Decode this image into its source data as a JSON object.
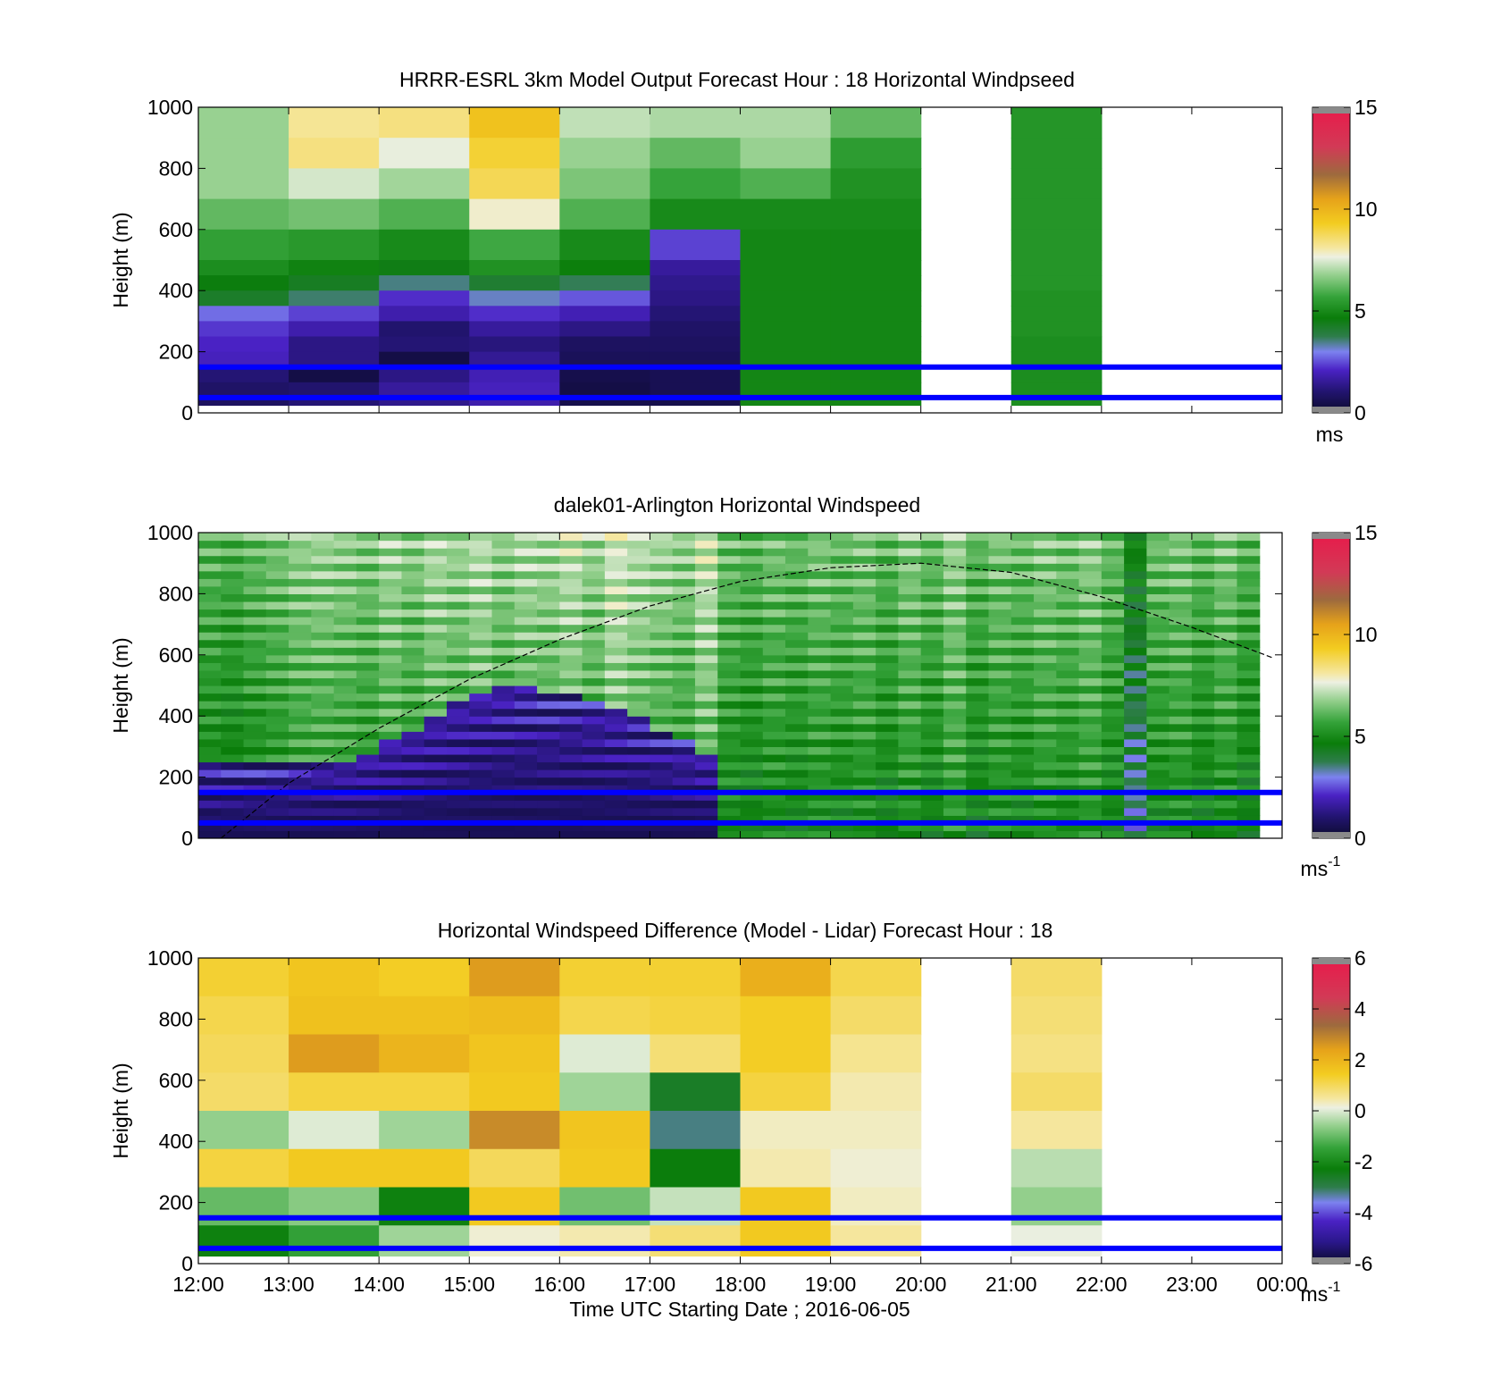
{
  "figure": {
    "xlabel": "Time UTC  Starting Date ; 2016-06-05",
    "x_ticks": [
      "12:00",
      "13:00",
      "14:00",
      "15:00",
      "16:00",
      "17:00",
      "18:00",
      "19:00",
      "20:00",
      "21:00",
      "22:00",
      "23:00",
      "00:00"
    ]
  },
  "chart_data": [
    {
      "type": "heatmap",
      "title": "HRRR-ESRL 3km Model Output   Forecast Hour : 18 Horizontal Windpseed",
      "ylabel": "Height (m)",
      "ylim": [
        0,
        1000
      ],
      "y_ticks": [
        "0",
        "200",
        "400",
        "600",
        "800",
        "1000"
      ],
      "colorbar": {
        "min": 0,
        "max": 15,
        "ticks": [
          "0",
          "5",
          "10",
          "15"
        ],
        "unit": "ms"
      },
      "reference_lines_m": [
        150,
        50
      ],
      "hours": [
        "12:00",
        "13:00",
        "14:00",
        "15:00",
        "16:00",
        "17:00",
        "18:00",
        "19:00",
        "20:00",
        "21:00",
        "22:00"
      ],
      "rows_top_m": [
        1000,
        900,
        800,
        700,
        600,
        500,
        450,
        400,
        350,
        300,
        250,
        200,
        150,
        100,
        50
      ],
      "rows_bottom_m": [
        900,
        800,
        700,
        600,
        500,
        450,
        400,
        350,
        300,
        250,
        200,
        150,
        100,
        50,
        25
      ],
      "values": [
        [
          6.8,
          6.8,
          6.8,
          6.2,
          5.6,
          5.1,
          4.6,
          4.2,
          2.8,
          2.3,
          2.1,
          2.0,
          1.1,
          0.9,
          0.8
        ],
        [
          8.2,
          8.4,
          7.4,
          6.4,
          5.4,
          4.8,
          4.3,
          3.6,
          2.4,
          1.8,
          1.3,
          1.3,
          0.4,
          1.0,
          1.1
        ],
        [
          8.4,
          7.6,
          6.9,
          6.0,
          5.0,
          4.5,
          3.5,
          2.2,
          1.8,
          1.0,
          1.1,
          0.4,
          1.3,
          1.6,
          1.4
        ],
        [
          9.6,
          9.1,
          8.8,
          7.8,
          5.8,
          5.2,
          4.1,
          3.2,
          2.2,
          1.6,
          1.2,
          1.5,
          1.9,
          2.0,
          1.8
        ],
        [
          7.2,
          6.8,
          6.5,
          6.0,
          5.0,
          4.7,
          3.7,
          2.6,
          1.9,
          1.3,
          0.8,
          0.7,
          0.5,
          0.4,
          0.5
        ],
        [
          7.0,
          6.2,
          5.7,
          5.0,
          2.4,
          1.6,
          1.4,
          1.3,
          1.1,
          0.9,
          0.8,
          0.7,
          0.6,
          0.6,
          0.5
        ],
        [
          7.0,
          6.8,
          6.0,
          5.0,
          4.9,
          4.9,
          4.9,
          4.9,
          4.9,
          4.9,
          4.9,
          4.9,
          4.9,
          4.9,
          4.9
        ],
        [
          6.2,
          5.5,
          5.2,
          5.0,
          4.9,
          4.9,
          4.9,
          4.9,
          4.9,
          4.9,
          4.9,
          4.9,
          4.9,
          4.9,
          4.9
        ],
        [
          null,
          null,
          null,
          null,
          null,
          null,
          null,
          null,
          null,
          null,
          null,
          null,
          null,
          null,
          null
        ],
        [
          5.3,
          5.3,
          5.3,
          5.3,
          5.3,
          5.3,
          5.3,
          5.2,
          5.2,
          5.2,
          5.1,
          5.1,
          5.1,
          5.1,
          5.1
        ],
        [
          null,
          null,
          null,
          null,
          null,
          null,
          null,
          null,
          null,
          null,
          null,
          null,
          null,
          null,
          null
        ]
      ]
    },
    {
      "type": "heatmap",
      "title": "dalek01-Arlington  Horizontal Windspeed",
      "ylabel": "Height (m)",
      "ylim": [
        0,
        1000
      ],
      "y_ticks": [
        "0",
        "200",
        "400",
        "600",
        "800",
        "1000"
      ],
      "colorbar": {
        "min": 0,
        "max": 15,
        "ticks": [
          "0",
          "5",
          "10",
          "15"
        ],
        "unit": "ms",
        "unit_exp": "-1"
      },
      "reference_lines_m": [
        150,
        50
      ],
      "mixing_layer_curve_m": [
        [
          12.25,
          0
        ],
        [
          13.0,
          180
        ],
        [
          14.0,
          360
        ],
        [
          15.0,
          520
        ],
        [
          16.0,
          650
        ],
        [
          17.0,
          760
        ],
        [
          18.0,
          840
        ],
        [
          19.0,
          885
        ],
        [
          20.0,
          900
        ],
        [
          21.0,
          870
        ],
        [
          22.0,
          790
        ],
        [
          23.0,
          690
        ],
        [
          23.9,
          590
        ]
      ],
      "time_extent_h": [
        12.0,
        23.85
      ],
      "profile_columns": [
        [
          12.0,
          4.6,
          12.0
        ],
        [
          12.25,
          4.4,
          12.0
        ],
        [
          12.5,
          4.7,
          12.0
        ],
        [
          12.75,
          4.9,
          12.0
        ],
        [
          13.0,
          5.2,
          12.0
        ],
        [
          13.25,
          5.3,
          13.0
        ],
        [
          13.5,
          5.2,
          13.0
        ],
        [
          13.75,
          5.0,
          14.0
        ],
        [
          14.0,
          5.4,
          16.0
        ],
        [
          14.25,
          5.1,
          18.0
        ],
        [
          14.5,
          5.5,
          20.0
        ],
        [
          14.75,
          5.3,
          22.0
        ],
        [
          15.0,
          5.6,
          24.0
        ],
        [
          15.25,
          5.2,
          25.0
        ],
        [
          15.5,
          5.5,
          25.0
        ],
        [
          15.75,
          5.4,
          24.0
        ],
        [
          16.0,
          5.7,
          24.0
        ],
        [
          16.25,
          5.3,
          23.0
        ],
        [
          16.5,
          5.9,
          21.0
        ],
        [
          16.75,
          5.6,
          20.0
        ],
        [
          17.0,
          5.4,
          18.0
        ],
        [
          17.25,
          5.2,
          16.0
        ],
        [
          17.5,
          5.8,
          14.0
        ],
        [
          17.75,
          4.8,
          0.0
        ],
        [
          18.0,
          4.6,
          0.0
        ],
        [
          18.25,
          4.9,
          0.0
        ],
        [
          18.5,
          4.7,
          0.0
        ],
        [
          18.75,
          5.0,
          0.0
        ],
        [
          19.0,
          4.8,
          0.0
        ],
        [
          19.25,
          5.0,
          0.0
        ],
        [
          19.5,
          4.6,
          0.0
        ],
        [
          19.75,
          5.1,
          0.0
        ],
        [
          20.0,
          4.7,
          0.0
        ],
        [
          20.25,
          5.3,
          0.0
        ],
        [
          20.5,
          4.6,
          0.0
        ],
        [
          20.75,
          5.0,
          0.0
        ],
        [
          21.0,
          4.8,
          0.0
        ],
        [
          21.25,
          5.1,
          0.0
        ],
        [
          21.5,
          4.9,
          0.0
        ],
        [
          21.75,
          5.2,
          0.0
        ],
        [
          22.0,
          4.7,
          0.0
        ],
        [
          22.25,
          3.2,
          0.0
        ],
        [
          22.5,
          4.8,
          0.0
        ],
        [
          22.75,
          5.0,
          0.0
        ],
        [
          23.0,
          4.6,
          0.0
        ],
        [
          23.25,
          5.0,
          0.0
        ],
        [
          23.5,
          4.5,
          0.0
        ]
      ]
    },
    {
      "type": "heatmap",
      "title": "Horizontal Windspeed Difference (Model - Lidar) Forecast Hour : 18",
      "ylabel": "Height (m)",
      "ylim": [
        0,
        1000
      ],
      "y_ticks": [
        "0",
        "200",
        "400",
        "600",
        "800",
        "1000"
      ],
      "colorbar": {
        "min": -6,
        "max": 6,
        "ticks": [
          "-6",
          "-4",
          "-2",
          "0",
          "2",
          "4",
          "6"
        ],
        "unit": "ms",
        "unit_exp": "-1"
      },
      "reference_lines_m": [
        150,
        50
      ],
      "hours": [
        "12:00",
        "13:00",
        "14:00",
        "15:00",
        "16:00",
        "17:00",
        "18:00",
        "19:00",
        "20:00",
        "21:00",
        "22:00"
      ],
      "level_tops_m": [
        1000,
        875,
        750,
        625,
        500,
        375,
        250,
        125
      ],
      "values": [
        [
          1.3,
          1.1,
          1.0,
          0.9,
          -0.6,
          1.2,
          -1.0,
          -2.2
        ],
        [
          1.6,
          1.7,
          2.5,
          1.2,
          0.0,
          1.5,
          -0.7,
          -1.5
        ],
        [
          1.4,
          1.7,
          2.0,
          1.2,
          -0.5,
          1.5,
          -2.2,
          -0.5
        ],
        [
          2.5,
          1.8,
          1.6,
          1.5,
          2.8,
          1.0,
          1.5,
          0.2
        ],
        [
          1.3,
          1.1,
          0.0,
          -0.5,
          1.6,
          1.5,
          -0.9,
          0.4
        ],
        [
          1.3,
          1.2,
          0.8,
          -2.6,
          -3.2,
          -2.3,
          -0.2,
          0.8
        ],
        [
          2.1,
          1.4,
          1.4,
          1.2,
          0.3,
          0.4,
          1.5,
          1.5
        ],
        [
          1.1,
          0.9,
          0.6,
          0.4,
          0.3,
          0.2,
          0.3,
          0.5
        ],
        [
          null,
          null,
          null,
          null,
          null,
          null,
          null,
          null
        ],
        [
          0.9,
          0.8,
          0.7,
          0.9,
          0.5,
          -0.3,
          -0.6,
          0.1
        ],
        [
          null,
          null,
          null,
          null,
          null,
          null,
          null,
          null
        ]
      ]
    }
  ]
}
